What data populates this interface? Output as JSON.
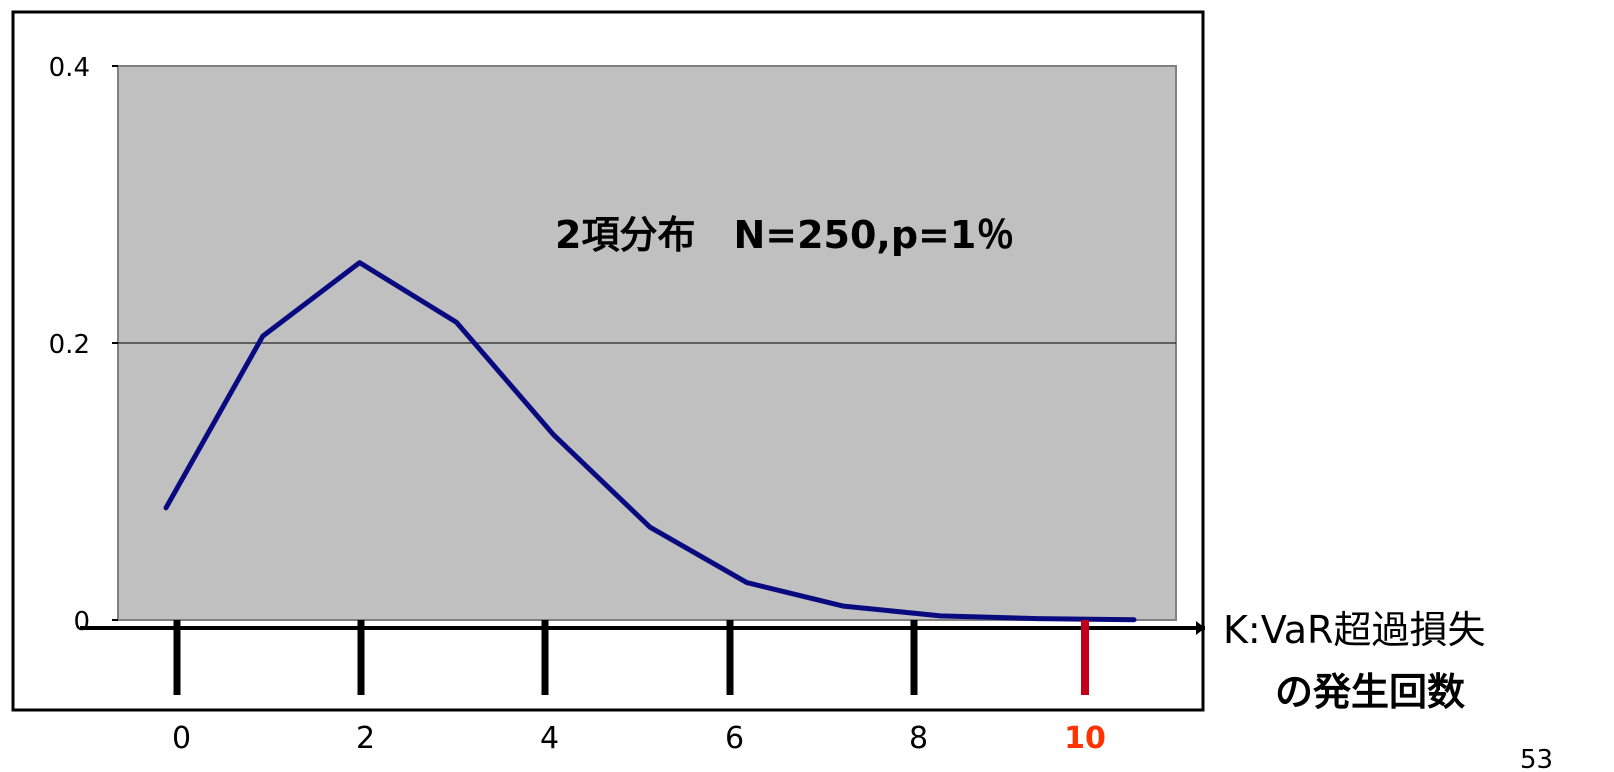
{
  "chart_data": {
    "type": "line",
    "title": "",
    "annotation": "2項分布　N=250,p=1％",
    "xlabel_line1": "K:VaR超過損失",
    "xlabel_line2": "の発生回数",
    "x": [
      0,
      1,
      2,
      3,
      4,
      5,
      6,
      7,
      8,
      9,
      10
    ],
    "series": [
      {
        "values": [
          0.081,
          0.205,
          0.258,
          0.215,
          0.134,
          0.067,
          0.027,
          0.01,
          0.003,
          0.001,
          0.0002
        ]
      }
    ],
    "ylim": [
      0,
      0.4
    ],
    "yticks": [
      "0",
      "0.2",
      "0.4"
    ],
    "xticks": [
      "0",
      "2",
      "4",
      "6",
      "8",
      "10"
    ],
    "highlight_tick": "10",
    "grid": true,
    "colors": {
      "line": "#0a0a80",
      "plot_background": "#c0c0c0",
      "highlight_tick": "#c0001a",
      "highlight_label": "#ff3300"
    }
  },
  "page_number": "53"
}
